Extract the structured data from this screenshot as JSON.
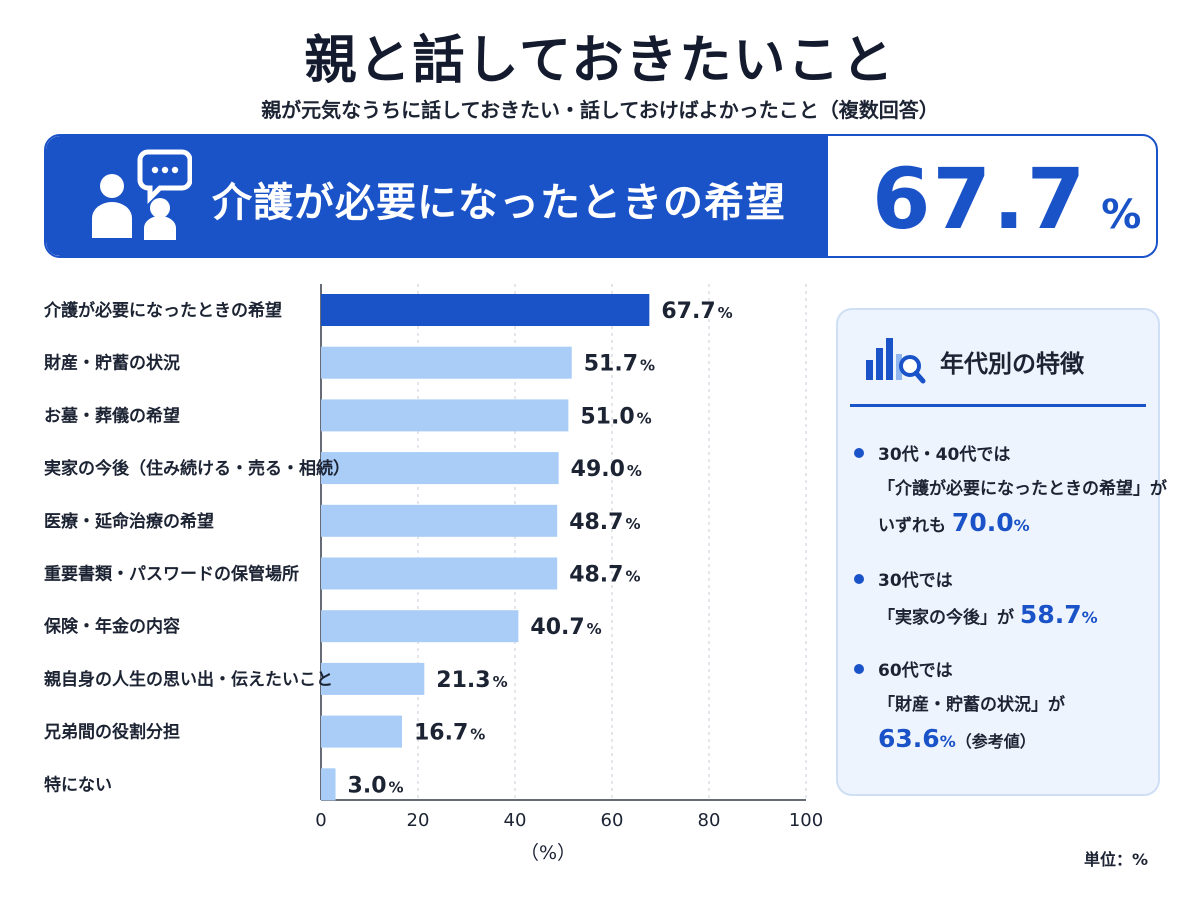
{
  "title": "親と話しておきたいこと",
  "subtitle": "親が元気なうちに話しておきたい・話しておけばよかったこと（複数回答）",
  "highlight": {
    "icon": "people-chat-icon",
    "label": "介護が必要になったときの希望",
    "value": "67.7",
    "unit": "%"
  },
  "colors": {
    "accent": "#1a52c8",
    "bar_light": "#a9cdf7",
    "panel_bg": "#eef4fd"
  },
  "chart_data": {
    "type": "bar",
    "orientation": "horizontal",
    "categories": [
      "介護が必要になったときの希望",
      "財産・貯蓄の状況",
      "お墓・葬儀の希望",
      "実家の今後（住み続ける・売る・相続）",
      "医療・延命治療の希望",
      "重要書類・パスワードの保管場所",
      "保険・年金の内容",
      "親自身の人生の思い出・伝えたいこと",
      "兄弟間の役割分担",
      "特にない"
    ],
    "values": [
      67.7,
      51.7,
      51.0,
      49.0,
      48.7,
      48.7,
      40.7,
      21.3,
      16.7,
      3.0
    ],
    "value_labels": [
      "67.7",
      "51.7",
      "51.0",
      "49.0",
      "48.7",
      "48.7",
      "40.7",
      "21.3",
      "16.7",
      "3.0"
    ],
    "value_unit": "%",
    "highlight_index": 0,
    "xlim": [
      0,
      100
    ],
    "xticks": [
      "0",
      "20",
      "40",
      "60",
      "80",
      "100"
    ],
    "xlabel": "（%）",
    "grid": true
  },
  "panel": {
    "icon": "bar-chart-search-icon",
    "title": "年代別の特徴",
    "notes": [
      {
        "line1": "30代・40代では",
        "line2": "「介護が必要になったときの希望」が",
        "line3_pre": "いずれも",
        "value": "70.0",
        "unit": "%"
      },
      {
        "line1": "30代では",
        "line2_pre": "「実家の今後」が",
        "value": "58.7",
        "unit": "%"
      },
      {
        "line1": "60代では",
        "line2": "「財産・貯蓄の状況」が",
        "value": "63.6",
        "unit": "%",
        "suffix": "（参考値）"
      }
    ]
  },
  "unit_note": "単位：%"
}
